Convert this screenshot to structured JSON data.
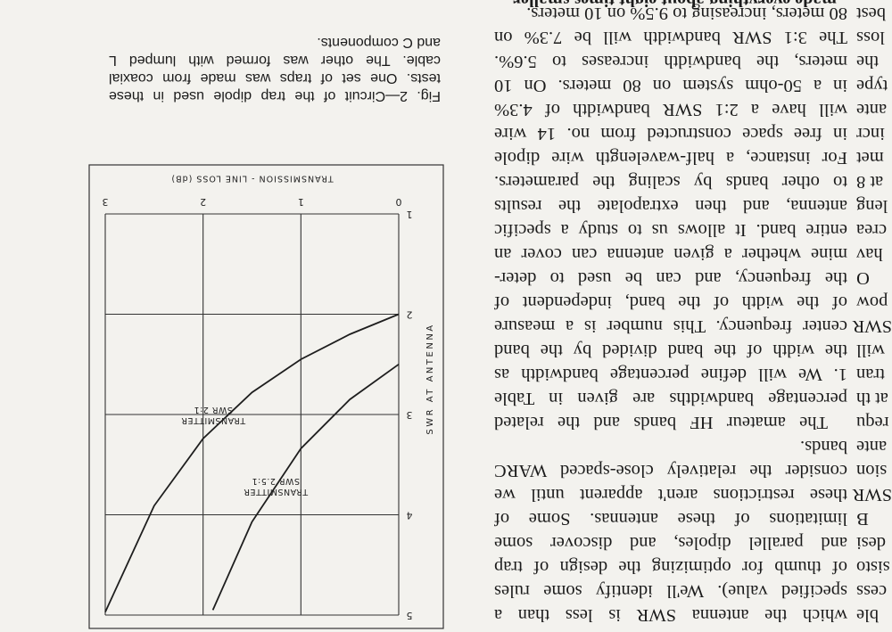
{
  "document": {
    "paragraphs": [
      [
        "which the antenna SWR is less than a",
        "specified value). We'll identify some rules",
        "of thumb for optimizing the design of trap",
        "and parallel dipoles, and discover some",
        "limitations of these antennas. Some of",
        "these restrictions aren't apparent until we",
        "consider the relatively close-spaced WARC",
        "bands."
      ],
      [
        "The amateur HF bands and the related",
        "percentage bandwidths are given in Table",
        "1. We will define percentage bandwidth as",
        "the width of the band divided by the band",
        "center frequency. This number is a measure",
        "of the width of the band, independent of",
        "the frequency, and can be used to deter-",
        "mine whether a given antenna can cover an",
        "entire band. It allows us to study a specific",
        "antenna, and then extrapolate the results",
        "to other bands by scaling the parameters.",
        "For instance, a half-wavelength wire dipole",
        "in free space constructed from no. 14 wire",
        "will have a 2:1 SWR bandwidth of 4.3%",
        "in a 50-ohm system on 80 meters. On 10",
        "meters, the bandwidth increases to 5.6%.",
        "The 3:1 SWR bandwidth will be 7.3% on",
        "80 meters, increasing to 9.5% on 10 meters."
      ]
    ],
    "cutoff_line": "made everything about eight times smaller.",
    "left_column_fragments": [
      "ble",
      "cess",
      "sisto",
      "desi",
      "B",
      "SWR",
      "sion",
      "ante",
      "requ",
      "at th",
      "tran",
      "will",
      "SWR",
      "pow",
      "O",
      "hav",
      "crea",
      "leng",
      "at 8",
      "met",
      "incr",
      "ante",
      "type",
      "the",
      "loss",
      "best"
    ],
    "figure_caption": [
      "Fig. 2—Circuit of the trap dipole used in these",
      "tests. One set of traps was made from coaxial",
      "cable. The other was formed with lumped L",
      "and C components."
    ]
  },
  "chart_data": {
    "type": "line",
    "x_label": "TRANSMISSION - LINE LOSS (dB)",
    "y_label": "SWR AT ANTENNA",
    "xlim": [
      0,
      3
    ],
    "ylim": [
      1,
      5
    ],
    "xticks": [
      0,
      1,
      2,
      3
    ],
    "yticks": [
      1,
      2,
      3,
      4,
      5
    ],
    "grid": true,
    "series": [
      {
        "name": "TRANSMITTER SWR 2:1",
        "color": "#1e1e1e",
        "x": [
          0,
          0.5,
          1,
          1.5,
          2,
          2.5,
          3
        ],
        "values": [
          2.0,
          2.2,
          2.45,
          2.78,
          3.24,
          3.91,
          4.97
        ]
      },
      {
        "name": "TRANSMITTER SWR 2.5:1",
        "color": "#1e1e1e",
        "x": [
          0,
          0.5,
          1,
          1.5,
          1.9
        ],
        "values": [
          2.5,
          2.85,
          3.34,
          4.07,
          4.95
        ]
      }
    ]
  }
}
